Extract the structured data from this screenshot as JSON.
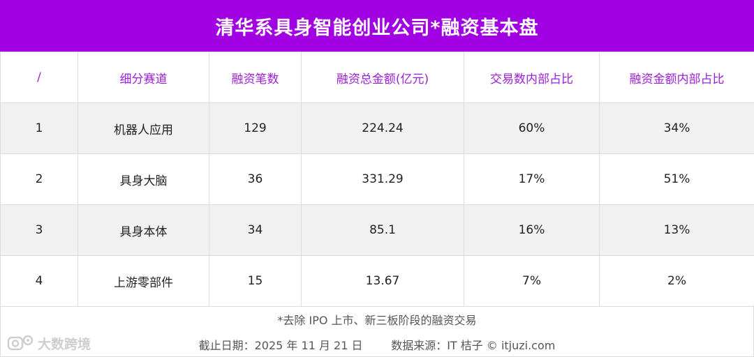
{
  "title": "清华系具身智能创业公司*融资基本盘",
  "chart_data": {
    "type": "table",
    "headers": [
      "/",
      "细分赛道",
      "融资笔数",
      "融资总金额(亿元)",
      "交易数内部占比",
      "融资金额内部占比"
    ],
    "rows": [
      [
        "1",
        "机器人应用",
        "129",
        "224.24",
        "60%",
        "34%"
      ],
      [
        "2",
        "具身大脑",
        "36",
        "331.29",
        "17%",
        "51%"
      ],
      [
        "3",
        "具身本体",
        "34",
        "85.1",
        "16%",
        "13%"
      ],
      [
        "4",
        "上游零部件",
        "15",
        "13.67",
        "7%",
        "2%"
      ]
    ]
  },
  "footnote": "*去除 IPO 上市、新三板阶段的融资交易",
  "date_text": "截止日期：2025 年 11 月 21 日",
  "source_text": "数据来源：IT 桔子 © itjuzi.com",
  "watermark_text": "大数跨境",
  "colors": {
    "accent": "#a100e3",
    "header_text": "#9b1fd6",
    "alt_row": "#f1f1f1"
  },
  "icons": {
    "watermark": "camera-logo-icon"
  }
}
